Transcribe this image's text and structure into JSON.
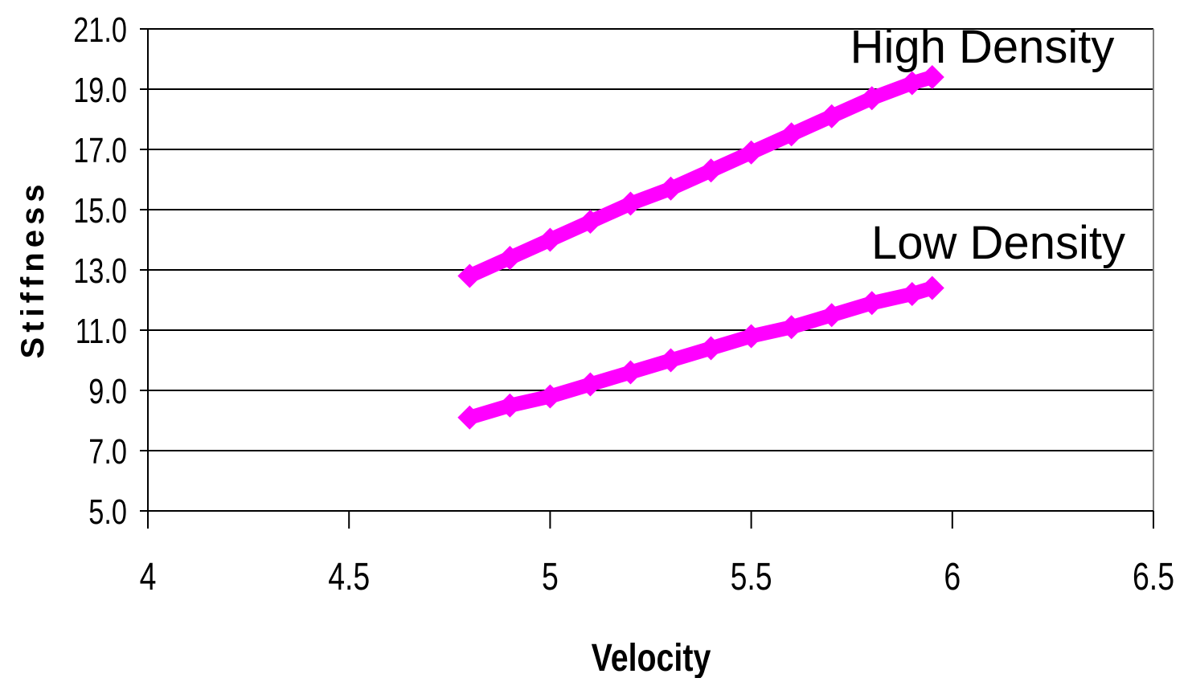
{
  "chart_data": {
    "type": "scatter",
    "title": "",
    "xlabel": "Velocity",
    "ylabel": "Stiffness",
    "xlim": [
      4,
      6.5
    ],
    "ylim": [
      5,
      21
    ],
    "x_ticks": [
      "4",
      "4.5",
      "5",
      "5.5",
      "6",
      "6.5"
    ],
    "y_ticks": [
      "5.0",
      "7.0",
      "9.0",
      "11.0",
      "13.0",
      "15.0",
      "17.0",
      "19.0",
      "21.0"
    ],
    "grid": "horizontal",
    "legend": "none",
    "marker_color": "#ff00ff",
    "series": [
      {
        "name": "High Density",
        "x": [
          4.8,
          4.9,
          5.0,
          5.1,
          5.2,
          5.3,
          5.4,
          5.5,
          5.6,
          5.7,
          5.8,
          5.9,
          5.95
        ],
        "y": [
          12.8,
          13.4,
          14.0,
          14.6,
          15.2,
          15.7,
          16.3,
          16.9,
          17.5,
          18.1,
          18.7,
          19.2,
          19.4
        ]
      },
      {
        "name": "Low Density",
        "x": [
          4.8,
          4.9,
          5.0,
          5.1,
          5.2,
          5.3,
          5.4,
          5.5,
          5.6,
          5.7,
          5.8,
          5.9,
          5.95
        ],
        "y": [
          8.1,
          8.5,
          8.8,
          9.2,
          9.6,
          10.0,
          10.4,
          10.8,
          11.1,
          11.5,
          11.9,
          12.2,
          12.4
        ]
      }
    ]
  }
}
